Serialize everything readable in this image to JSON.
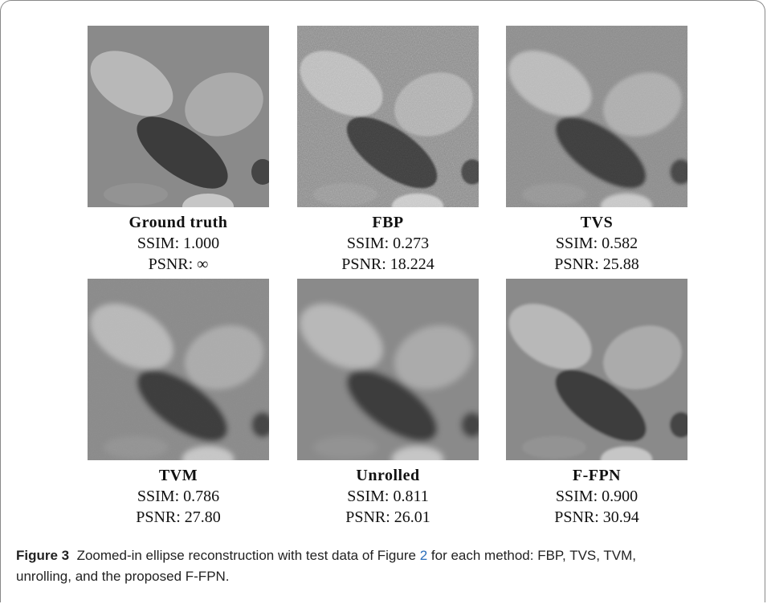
{
  "panels": [
    {
      "title": "Ground truth",
      "ssim": "SSIM: 1.000",
      "psnr": "PSNR: ∞"
    },
    {
      "title": "FBP",
      "ssim": "SSIM: 0.273",
      "psnr": "PSNR: 18.224"
    },
    {
      "title": "TVS",
      "ssim": "SSIM: 0.582",
      "psnr": "PSNR: 25.88"
    },
    {
      "title": "TVM",
      "ssim": "SSIM: 0.786",
      "psnr": "PSNR: 27.80"
    },
    {
      "title": "Unrolled",
      "ssim": "SSIM: 0.811",
      "psnr": "PSNR: 26.01"
    },
    {
      "title": "F-FPN",
      "ssim": "SSIM: 0.900",
      "psnr": "PSNR: 30.94"
    }
  ],
  "caption": {
    "label": "Figure 3",
    "text": "Zoomed-in ellipse reconstruction with test data of Figure",
    "link": "2",
    "text_after": "for each method: FBP, TVS, TVM, unrolling, and the proposed F-FPN."
  }
}
